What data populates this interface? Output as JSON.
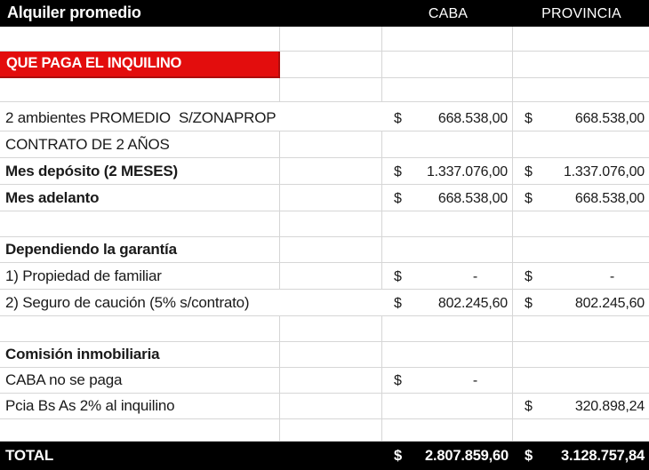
{
  "currency_symbol": "$",
  "colors": {
    "banner_red": "#e30d0d",
    "header_black": "#000000"
  },
  "header": {
    "title": "Alquiler promedio",
    "caba": "CABA",
    "provincia": "PROVINCIA"
  },
  "banner": {
    "text": "QUE PAGA EL INQUILINO"
  },
  "rows": [
    {
      "kind": "blank"
    },
    {
      "kind": "banner"
    },
    {
      "kind": "blank"
    },
    {
      "kind": "item",
      "label": "2 ambientes PROMEDIO  S/ZONAPROP",
      "bold": false,
      "overflow": true,
      "caba": "668.538,00",
      "provincia": "668.538,00"
    },
    {
      "kind": "item",
      "label": "CONTRATO DE 2 AÑOS",
      "bold": false,
      "caba": null,
      "provincia": null
    },
    {
      "kind": "item",
      "label": "Mes depósito (2 MESES)",
      "bold": true,
      "caba": "1.337.076,00",
      "provincia": "1.337.076,00"
    },
    {
      "kind": "item",
      "label": "Mes adelanto",
      "bold": true,
      "caba": "668.538,00",
      "provincia": "668.538,00"
    },
    {
      "kind": "blank"
    },
    {
      "kind": "item",
      "label": "Dependiendo la garantía",
      "bold": true,
      "caba": null,
      "provincia": null
    },
    {
      "kind": "item",
      "label": "1) Propiedad de familiar",
      "bold": false,
      "caba": "-",
      "provincia": "-"
    },
    {
      "kind": "item",
      "label": "2) Seguro de caución (5% s/contrato)",
      "bold": false,
      "overflow": true,
      "caba": "802.245,60",
      "provincia": "802.245,60"
    },
    {
      "kind": "blank"
    },
    {
      "kind": "item",
      "label": "Comisión inmobiliaria",
      "bold": true,
      "caba": null,
      "provincia": null
    },
    {
      "kind": "item",
      "label": "CABA no se paga",
      "bold": false,
      "caba": "-",
      "provincia": null
    },
    {
      "kind": "item",
      "label": "Pcia Bs As 2% al inquilino",
      "bold": false,
      "caba": null,
      "provincia": "320.898,24"
    },
    {
      "kind": "blank"
    }
  ],
  "total": {
    "label": "TOTAL",
    "caba": "2.807.859,60",
    "provincia": "3.128.757,84"
  }
}
